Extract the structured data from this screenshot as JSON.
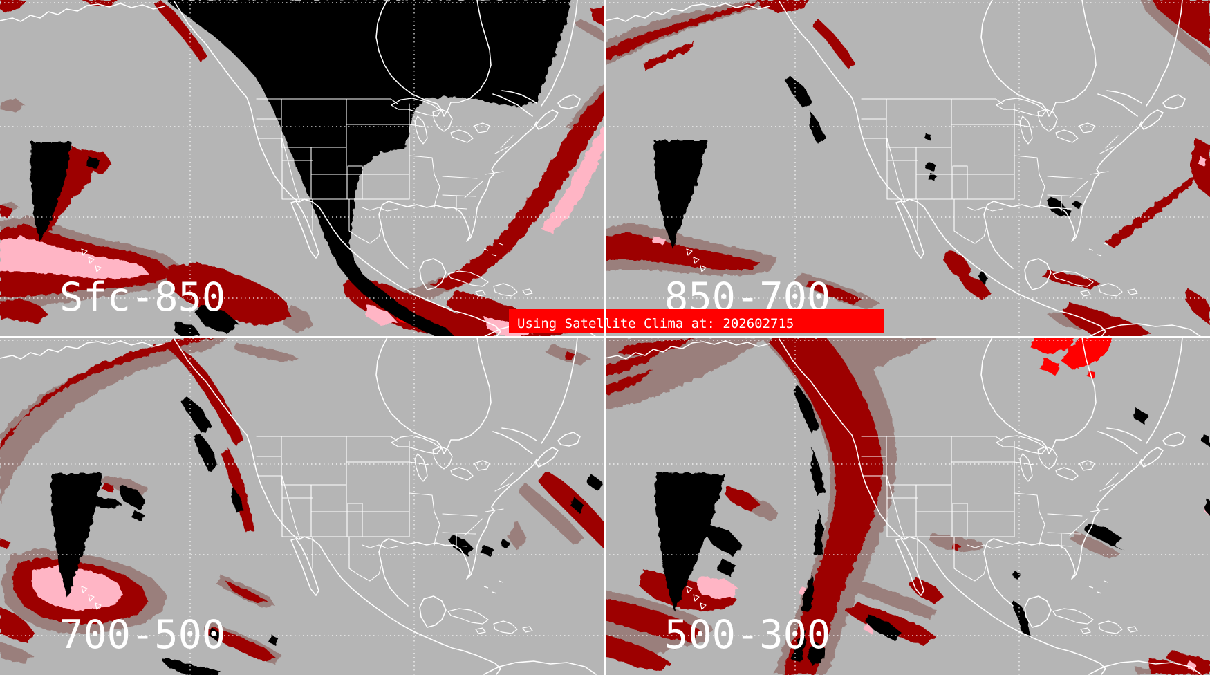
{
  "banner": {
    "text": "Using Satellite Clima at: 202602715",
    "bg": "#ff0000",
    "fg": "#ffffff"
  },
  "quadrants": [
    {
      "id": "sfc-850",
      "label": "Sfc-850",
      "position": "top-left"
    },
    {
      "id": "850-700",
      "label": "850-700",
      "position": "top-right"
    },
    {
      "id": "700-500",
      "label": "700-500",
      "position": "bottom-left"
    },
    {
      "id": "500-300",
      "label": "500-300",
      "position": "bottom-right"
    }
  ],
  "palette": {
    "gray": "#b5b5b5",
    "dark_red": "#9d0202",
    "brown": "#9a7f7b",
    "pink": "#ffb5c5",
    "bright_red": "#ff0000",
    "black": "#000000",
    "white": "#ffffff"
  },
  "gridlines": {
    "horizontal_y": [
      4,
      183,
      314,
      431
    ],
    "vertical_x": [
      275,
      599
    ]
  }
}
